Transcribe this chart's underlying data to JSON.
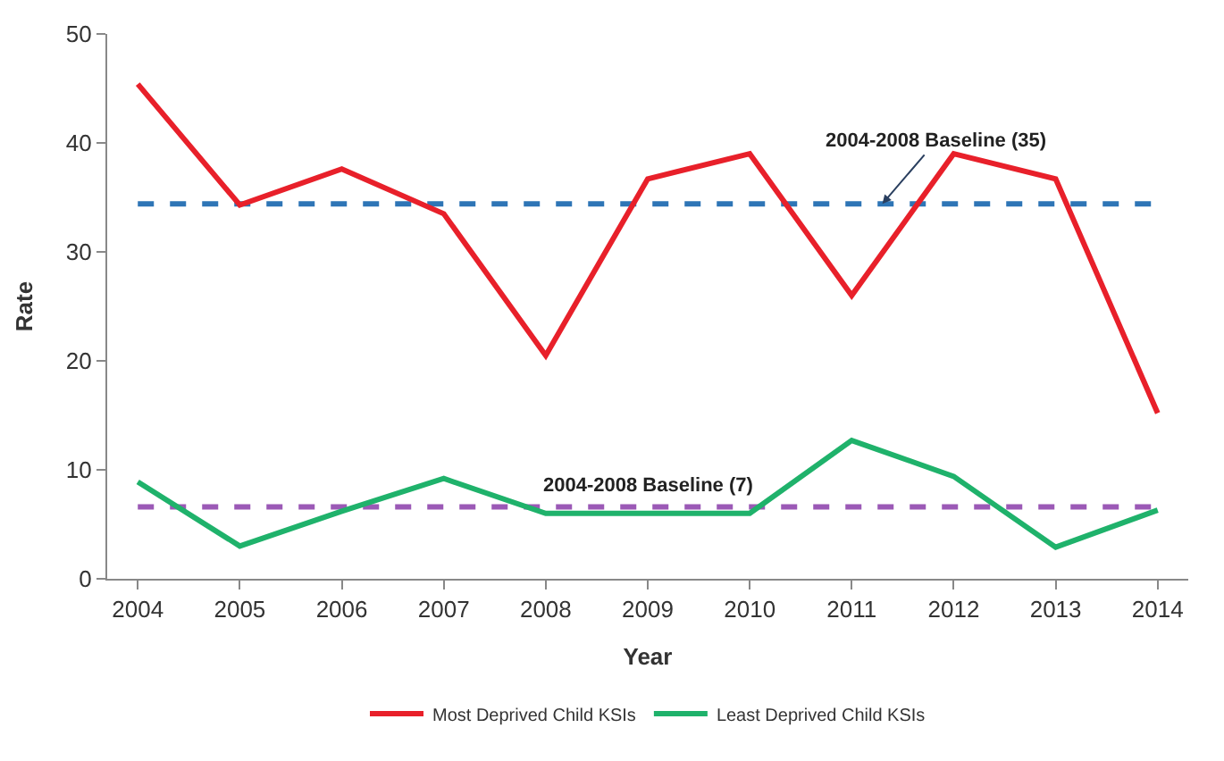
{
  "chart_data": {
    "type": "line",
    "xlabel": "Year",
    "ylabel": "Rate",
    "categories": [
      "2004",
      "2005",
      "2006",
      "2007",
      "2008",
      "2009",
      "2010",
      "2011",
      "2012",
      "2013",
      "2014"
    ],
    "series": [
      {
        "name": "Most Deprived Child KSIs",
        "color": "#e8202a",
        "values": [
          45.4,
          34.3,
          37.6,
          33.5,
          20.5,
          36.7,
          39,
          26,
          39,
          36.7,
          15.2
        ]
      },
      {
        "name": "Least Deprived Child KSIs",
        "color": "#1fb26b",
        "values": [
          8.9,
          3,
          6.2,
          9.2,
          6,
          6,
          6,
          12.7,
          9.4,
          2.9,
          6.3
        ]
      }
    ],
    "ylim": [
      0,
      50
    ],
    "yticks": [
      0,
      10,
      20,
      30,
      40,
      50
    ],
    "grid": false,
    "legend": "bottom",
    "marker": "none",
    "line_style": "solid",
    "ref_lines": [
      {
        "axis": "y",
        "value": 34.4,
        "label": "2004-2008 Baseline (35)",
        "color": "#2e75b6",
        "line_style": "dashed"
      },
      {
        "axis": "y",
        "value": 6.6,
        "label": "2004-2008 Baseline (7)",
        "color": "#9b59b6",
        "line_style": "dashed"
      }
    ]
  }
}
